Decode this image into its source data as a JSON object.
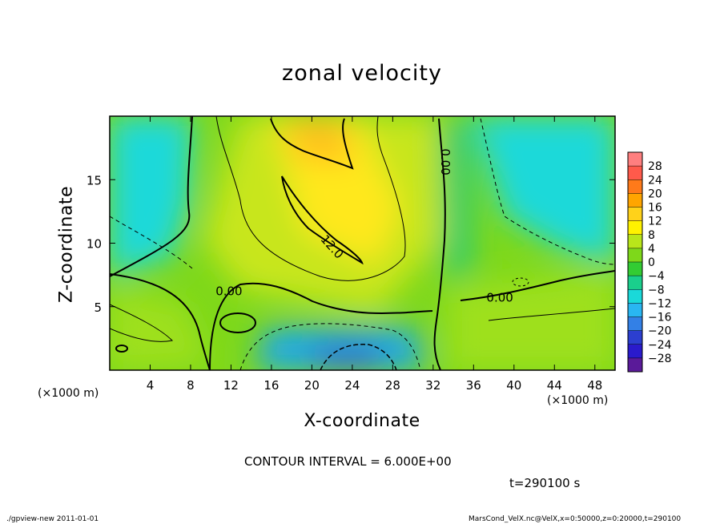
{
  "title": "zonal velocity",
  "xlabel": "X-coordinate",
  "ylabel": "Z-coordinate",
  "x_unit": "(×1000 m)",
  "contour_text": "CONTOUR INTERVAL = 6.000E+00",
  "time_text": "t=290100 s",
  "footer_left": "./gpview-new   2011-01-01",
  "footer_right": "MarsCond_VelX.nc@VelX,x=0:50000,z=0:20000,t=290100",
  "chart_data": {
    "type": "heatmap",
    "xlim": [
      0,
      50
    ],
    "ylim": [
      0,
      20
    ],
    "x_ticks": [
      4,
      8,
      12,
      16,
      20,
      24,
      28,
      32,
      36,
      40,
      44,
      48
    ],
    "y_ticks": [
      5,
      10,
      15
    ],
    "contour_labels": [
      {
        "text": "0.00",
        "x": 11.8,
        "z": 5.9
      },
      {
        "text": "12.0",
        "x": 21.7,
        "z": 9.5
      },
      {
        "text": "0.00",
        "x": 32.8,
        "z": 16.4
      },
      {
        "text": "0.00",
        "x": 38.6,
        "z": 5.4
      }
    ],
    "colorbar": {
      "labels": [
        "28",
        "24",
        "20",
        "16",
        "12",
        "8",
        "4",
        "0",
        "−4",
        "−8",
        "−12",
        "−16",
        "−20",
        "−24",
        "−28"
      ],
      "values": [
        28,
        24,
        20,
        16,
        12,
        8,
        4,
        0,
        -4,
        -8,
        -12,
        -16,
        -20,
        -24,
        -28
      ],
      "colors": [
        "#ff7f7f",
        "#ff5a4b",
        "#ff7a1a",
        "#ffa500",
        "#ffd21a",
        "#fff200",
        "#b9e61a",
        "#7ed81a",
        "#33cc33",
        "#1acf8c",
        "#1ad9d9",
        "#29b6f2",
        "#3380e6",
        "#2c3fd0",
        "#2a1acc",
        "#5a1a99"
      ]
    },
    "field_features": [
      {
        "name": "jet-core",
        "x": 21,
        "z": 17,
        "value": 14
      },
      {
        "name": "upper-west-negative",
        "x": 2,
        "z": 13,
        "value": -9
      },
      {
        "name": "upper-east-negative",
        "x": 46,
        "z": 15,
        "value": -7
      },
      {
        "name": "bottom-negative",
        "x": 24,
        "z": 0.5,
        "value": -15
      },
      {
        "name": "lower-left-positive",
        "x": 2,
        "z": 3,
        "value": 5
      },
      {
        "name": "lower-right-positive",
        "x": 44,
        "z": 4,
        "value": 5
      }
    ]
  }
}
